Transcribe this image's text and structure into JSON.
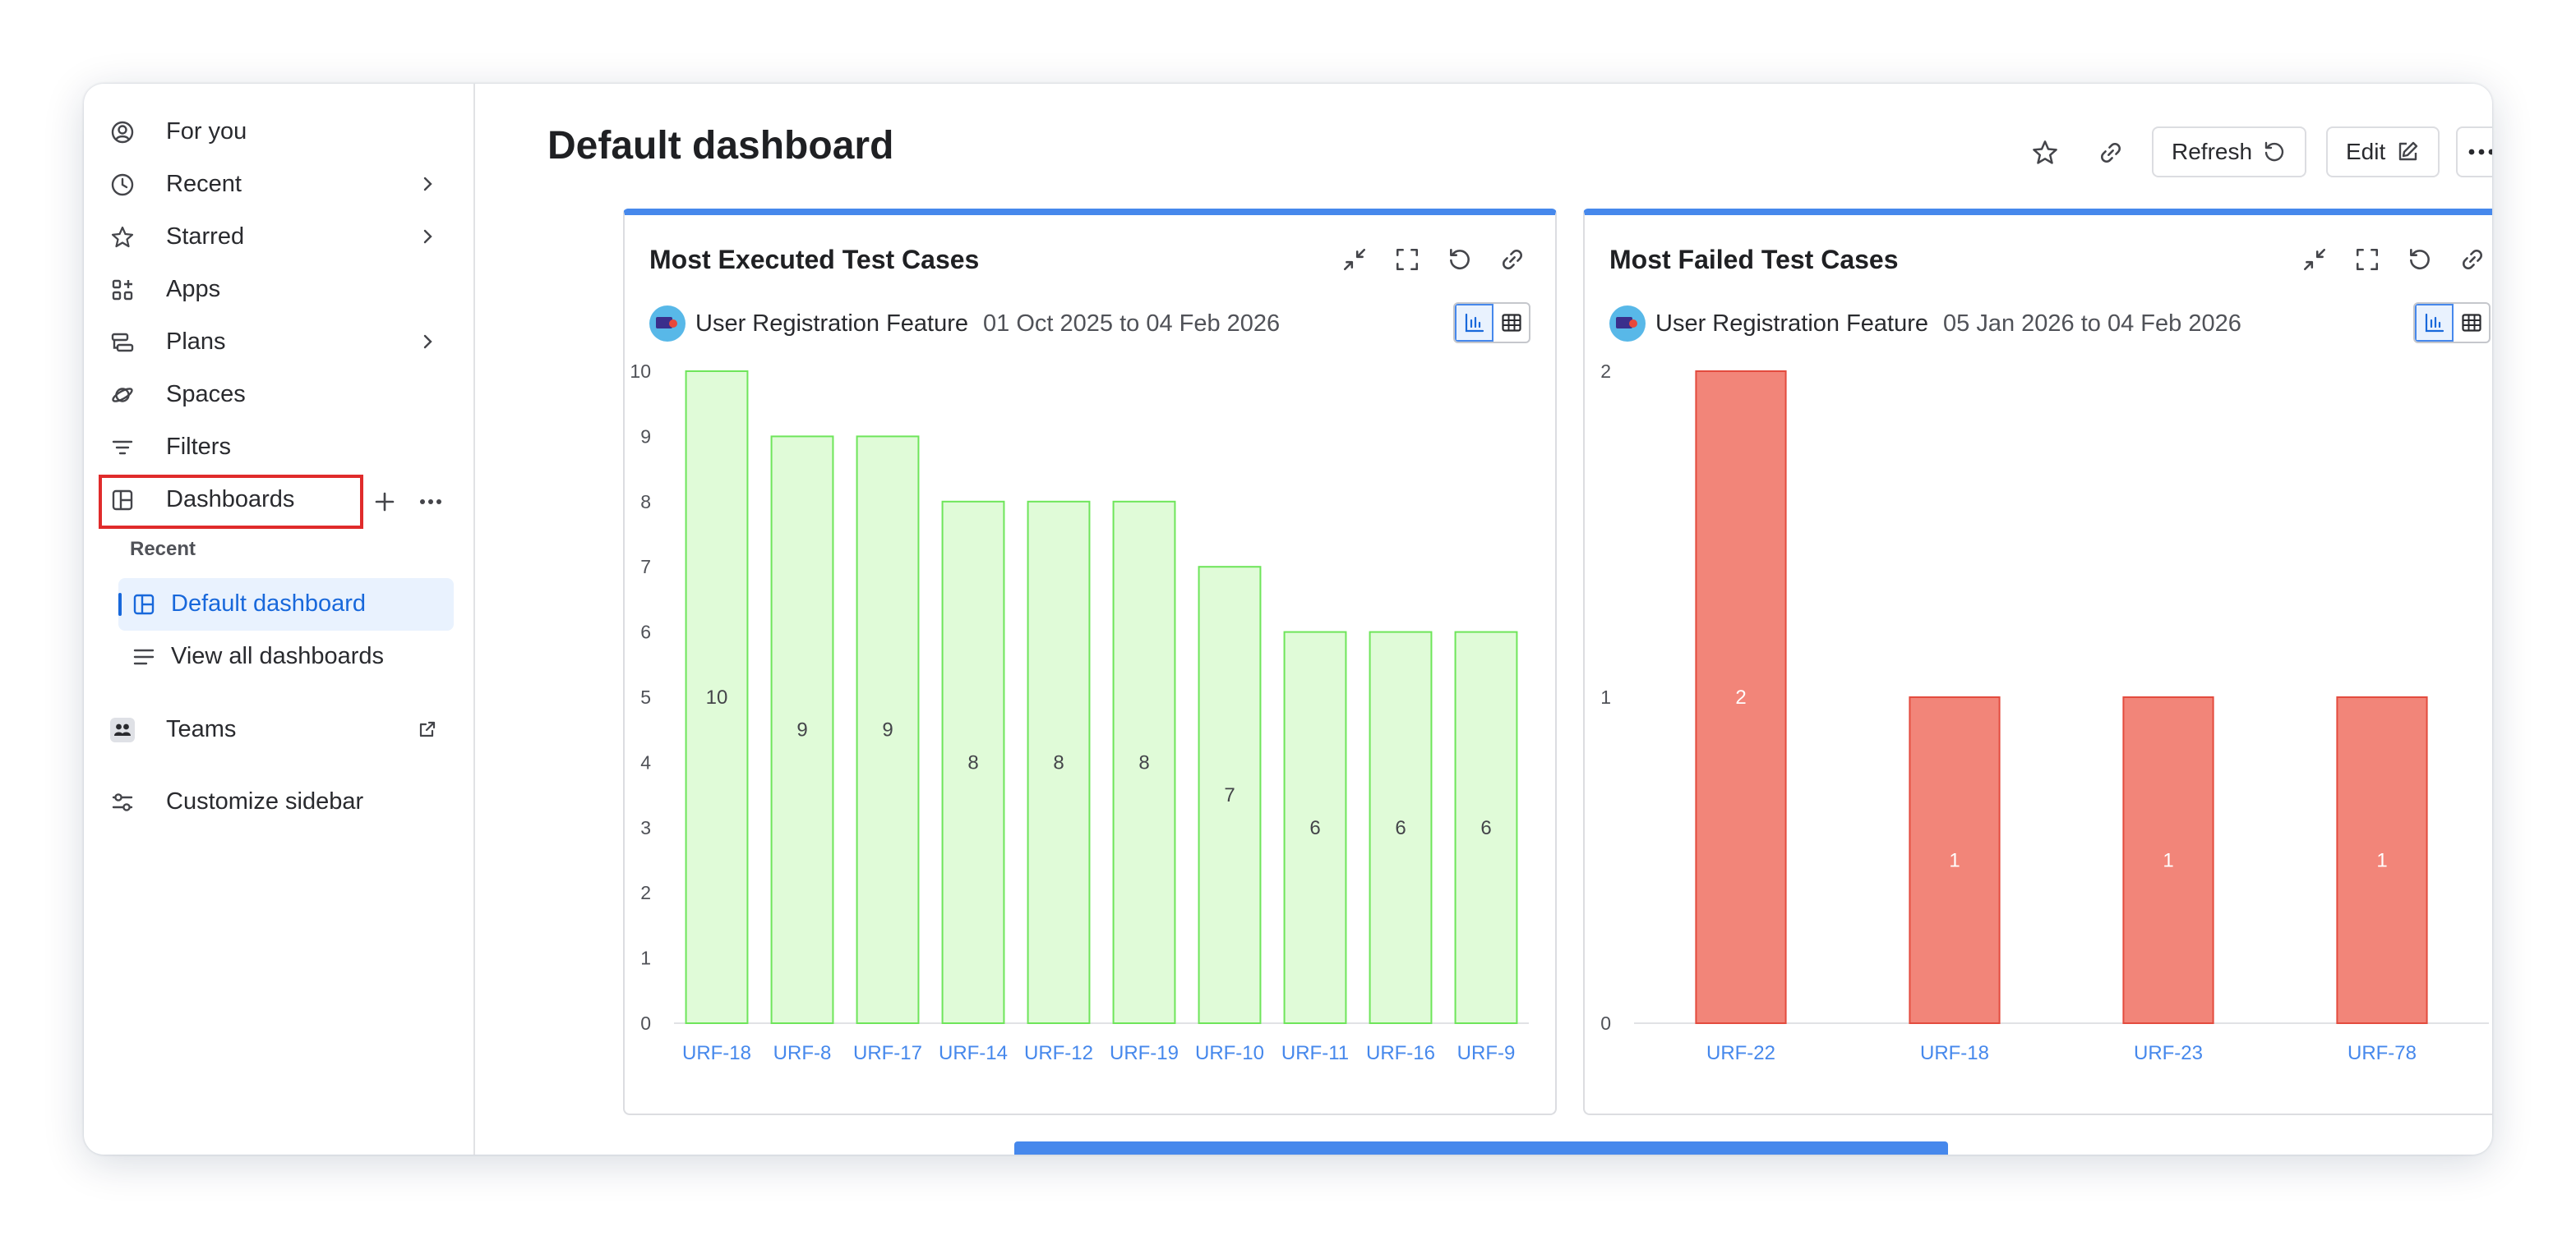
{
  "sidebar": {
    "items": [
      {
        "label": "For you",
        "icon": "user-circle-icon"
      },
      {
        "label": "Recent",
        "icon": "clock-icon"
      },
      {
        "label": "Starred",
        "icon": "star-icon"
      },
      {
        "label": "Apps",
        "icon": "apps-grid-icon"
      },
      {
        "label": "Plans",
        "icon": "plans-icon"
      },
      {
        "label": "Spaces",
        "icon": "spaces-icon"
      },
      {
        "label": "Filters",
        "icon": "filter-icon"
      },
      {
        "label": "Dashboards",
        "icon": "dashboard-icon"
      }
    ],
    "recent_label": "Recent",
    "recent_dashboards": [
      {
        "label": "Default dashboard",
        "selected": true
      },
      {
        "label": "View all dashboards",
        "selected": false
      }
    ],
    "teams_label": "Teams",
    "customize_label": "Customize sidebar"
  },
  "header": {
    "title": "Default dashboard",
    "refresh_label": "Refresh",
    "edit_label": "Edit"
  },
  "gadgets": [
    {
      "title": "Most Executed Test Cases",
      "project": "User Registration Feature",
      "date_range": "01 Oct 2025 to 04 Feb 2026"
    },
    {
      "title": "Most Failed Test Cases",
      "project": "User Registration Feature",
      "date_range": "05 Jan 2026 to 04 Feb 2026"
    }
  ],
  "colors": {
    "accent": "#1868db",
    "gadget_border_top": "#4688ec",
    "bar_executed_fill": "#e0fbd8",
    "bar_executed_stroke": "#6ee55a",
    "bar_failed_fill": "#f28579",
    "bar_failed_stroke": "#e34b3e",
    "category_label": "#4688ec",
    "highlight_box": "#e02b2b"
  },
  "chart_data": [
    {
      "type": "bar",
      "title": "Most Executed Test Cases",
      "categories": [
        "URF-18",
        "URF-8",
        "URF-17",
        "URF-14",
        "URF-12",
        "URF-19",
        "URF-10",
        "URF-11",
        "URF-16",
        "URF-9"
      ],
      "values": [
        10,
        9,
        9,
        8,
        8,
        8,
        7,
        6,
        6,
        6
      ],
      "ylim": [
        0,
        10
      ],
      "yticks": [
        0,
        1,
        2,
        3,
        4,
        5,
        6,
        7,
        8,
        9,
        10
      ],
      "xlabel": "",
      "ylabel": ""
    },
    {
      "type": "bar",
      "title": "Most Failed Test Cases",
      "categories": [
        "URF-22",
        "URF-18",
        "URF-23",
        "URF-78"
      ],
      "values": [
        2,
        1,
        1,
        1
      ],
      "ylim": [
        0,
        2
      ],
      "yticks": [
        0,
        1,
        2
      ],
      "xlabel": "",
      "ylabel": ""
    }
  ]
}
